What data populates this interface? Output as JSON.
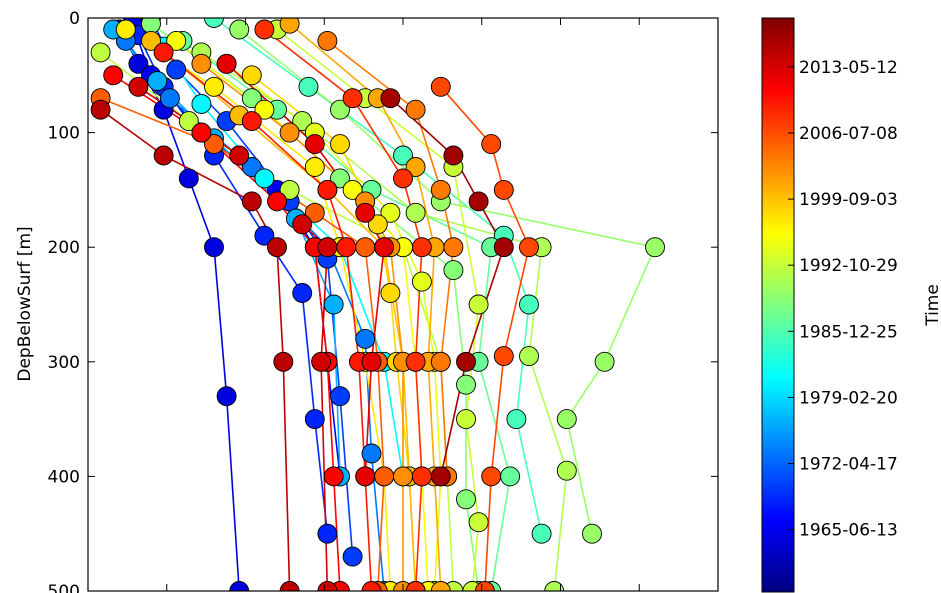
{
  "chart_data": {
    "type": "scatter",
    "title": "",
    "xlabel": "",
    "ylabel": "DepBelowSurf [m]",
    "ylim": [
      500,
      0
    ],
    "yticks": [
      0,
      100,
      200,
      300,
      400,
      500
    ],
    "x_ticks_labeled": false,
    "grid": false,
    "colorbar": {
      "label": "Time",
      "colormap": "jet",
      "range": [
        "1959-01-01",
        "2018-06-01"
      ],
      "tick_labels": [
        "1965-06-13",
        "1972-04-17",
        "1979-02-20",
        "1985-12-25",
        "1992-10-29",
        "1999-09-03",
        "2006-07-08",
        "2013-05-12"
      ]
    },
    "profiles_note_free": true,
    "profiles": [
      {
        "date": "1964-08-01",
        "x": [
          0.05,
          0.08,
          0.12,
          0.16,
          0.2,
          0.22,
          0.24
        ],
        "depth": [
          10,
          40,
          80,
          140,
          200,
          330,
          500
        ]
      },
      {
        "date": "1966-03-01",
        "x": [
          0.07,
          0.1,
          0.18,
          0.3,
          0.36,
          0.38,
          0.4
        ],
        "depth": [
          5,
          50,
          100,
          150,
          200,
          300,
          400
        ]
      },
      {
        "date": "1968-07-01",
        "x": [
          0.08,
          0.12,
          0.2,
          0.28,
          0.34,
          0.36,
          0.38
        ],
        "depth": [
          15,
          60,
          120,
          190,
          240,
          350,
          450
        ]
      },
      {
        "date": "1970-01-01",
        "x": [
          0.1,
          0.14,
          0.22,
          0.32,
          0.38,
          0.4,
          0.42
        ],
        "depth": [
          0,
          45,
          90,
          160,
          210,
          330,
          470
        ]
      },
      {
        "date": "1973-05-01",
        "x": [
          0.06,
          0.13,
          0.26,
          0.38,
          0.44,
          0.45,
          0.47
        ],
        "depth": [
          20,
          70,
          130,
          200,
          280,
          380,
          500
        ]
      },
      {
        "date": "1976-09-01",
        "x": [
          0.04,
          0.11,
          0.2,
          0.33,
          0.39,
          0.4
        ],
        "depth": [
          10,
          55,
          105,
          175,
          250,
          400
        ]
      },
      {
        "date": "1981-01-01",
        "x": [
          0.12,
          0.18,
          0.28,
          0.4,
          0.47,
          0.5
        ],
        "depth": [
          25,
          75,
          140,
          200,
          300,
          400
        ]
      },
      {
        "date": "1985-06-01",
        "x": [
          0.2,
          0.35,
          0.5,
          0.66,
          0.7,
          0.68,
          0.72
        ],
        "depth": [
          0,
          60,
          120,
          190,
          250,
          350,
          450
        ]
      },
      {
        "date": "1987-04-01",
        "x": [
          0.15,
          0.3,
          0.45,
          0.64,
          0.62,
          0.67,
          0.64
        ],
        "depth": [
          20,
          80,
          150,
          200,
          300,
          400,
          500
        ]
      },
      {
        "date": "1989-02-01",
        "x": [
          0.1,
          0.26,
          0.4,
          0.58,
          0.6,
          0.6,
          0.62
        ],
        "depth": [
          5,
          70,
          140,
          220,
          320,
          420,
          500
        ]
      },
      {
        "date": "1990-03-01",
        "x": [
          0.24,
          0.4,
          0.56,
          0.9,
          0.82,
          0.76,
          0.8
        ],
        "depth": [
          10,
          80,
          160,
          200,
          300,
          350,
          450
        ]
      },
      {
        "date": "1991-06-01",
        "x": [
          0.18,
          0.34,
          0.52,
          0.72,
          0.7,
          0.76,
          0.74
        ],
        "depth": [
          30,
          90,
          170,
          200,
          295,
          395,
          500
        ]
      },
      {
        "date": "1992-05-01",
        "x": [
          0.02,
          0.16,
          0.32,
          0.5,
          0.56,
          0.57,
          0.58
        ],
        "depth": [
          30,
          90,
          150,
          200,
          300,
          400,
          500
        ]
      },
      {
        "date": "1993-01-01",
        "x": [
          0.3,
          0.44,
          0.58,
          0.62,
          0.6,
          0.62,
          0.61
        ],
        "depth": [
          10,
          70,
          130,
          250,
          350,
          440,
          500
        ]
      },
      {
        "date": "1994-08-01",
        "x": [
          0.22,
          0.36,
          0.48,
          0.53,
          0.55,
          0.56,
          0.55
        ],
        "depth": [
          40,
          100,
          170,
          230,
          300,
          400,
          500
        ]
      },
      {
        "date": "1995-10-01",
        "x": [
          0.14,
          0.28,
          0.42,
          0.5,
          0.52,
          0.53,
          0.54
        ],
        "depth": [
          20,
          80,
          150,
          200,
          300,
          400,
          500
        ]
      },
      {
        "date": "1997-03-01",
        "x": [
          0.06,
          0.2,
          0.36,
          0.4,
          0.44,
          0.47,
          0.48
        ],
        "depth": [
          10,
          60,
          130,
          200,
          300,
          400,
          500
        ]
      },
      {
        "date": "1998-06-01",
        "x": [
          0.26,
          0.4,
          0.46,
          0.48,
          0.49,
          0.51,
          0.52
        ],
        "depth": [
          50,
          110,
          180,
          240,
          300,
          400,
          500
        ]
      },
      {
        "date": "2000-02-01",
        "x": [
          0.1,
          0.24,
          0.38,
          0.47,
          0.5,
          0.51,
          0.52
        ],
        "depth": [
          20,
          85,
          150,
          200,
          300,
          400,
          500
        ]
      },
      {
        "date": "2001-05-01",
        "x": [
          0.32,
          0.46,
          0.52,
          0.55,
          0.54,
          0.55,
          0.56
        ],
        "depth": [
          5,
          70,
          130,
          200,
          300,
          400,
          500
        ]
      },
      {
        "date": "2002-09-01",
        "x": [
          0.18,
          0.32,
          0.44,
          0.48,
          0.5,
          0.5,
          0.5
        ],
        "depth": [
          40,
          100,
          160,
          200,
          300,
          400,
          500
        ]
      },
      {
        "date": "2004-01-01",
        "x": [
          0.38,
          0.52,
          0.56,
          0.58,
          0.56,
          0.57
        ],
        "depth": [
          20,
          80,
          150,
          200,
          300,
          400
        ]
      },
      {
        "date": "2005-07-01",
        "x": [
          0.02,
          0.2,
          0.36,
          0.44,
          0.46,
          0.47,
          0.46
        ],
        "depth": [
          70,
          110,
          170,
          200,
          300,
          400,
          500
        ]
      },
      {
        "date": "2006-11-01",
        "x": [
          0.56,
          0.64,
          0.66,
          0.7,
          0.66,
          0.64,
          0.63
        ],
        "depth": [
          60,
          110,
          150,
          200,
          295,
          400,
          500
        ]
      },
      {
        "date": "2008-04-01",
        "x": [
          0.28,
          0.42,
          0.5,
          0.53,
          0.52,
          0.53,
          0.52
        ],
        "depth": [
          10,
          70,
          140,
          200,
          300,
          400,
          500
        ]
      },
      {
        "date": "2009-08-01",
        "x": [
          0.12,
          0.26,
          0.38,
          0.41,
          0.43,
          0.44,
          0.45
        ],
        "depth": [
          30,
          90,
          150,
          200,
          300,
          400,
          500
        ]
      },
      {
        "date": "2011-02-01",
        "x": [
          0.04,
          0.18,
          0.3,
          0.36,
          0.38,
          0.39,
          0.4
        ],
        "depth": [
          50,
          100,
          160,
          200,
          300,
          400,
          500
        ]
      },
      {
        "date": "2012-06-01",
        "x": [
          0.22,
          0.36,
          0.44,
          0.47,
          0.45,
          0.44
        ],
        "depth": [
          40,
          110,
          170,
          200,
          300,
          400
        ]
      },
      {
        "date": "2013-09-01",
        "x": [
          0.08,
          0.24,
          0.34,
          0.38,
          0.37,
          0.38
        ],
        "depth": [
          60,
          120,
          180,
          200,
          300,
          500
        ]
      },
      {
        "date": "2015-01-01",
        "x": [
          0.02,
          0.12,
          0.26,
          0.3,
          0.31,
          0.32
        ],
        "depth": [
          80,
          120,
          160,
          200,
          300,
          500
        ]
      },
      {
        "date": "2016-05-01",
        "x": [
          0.48,
          0.58,
          0.62,
          0.66,
          0.6,
          0.56
        ],
        "depth": [
          70,
          120,
          160,
          200,
          300,
          400
        ]
      }
    ]
  }
}
